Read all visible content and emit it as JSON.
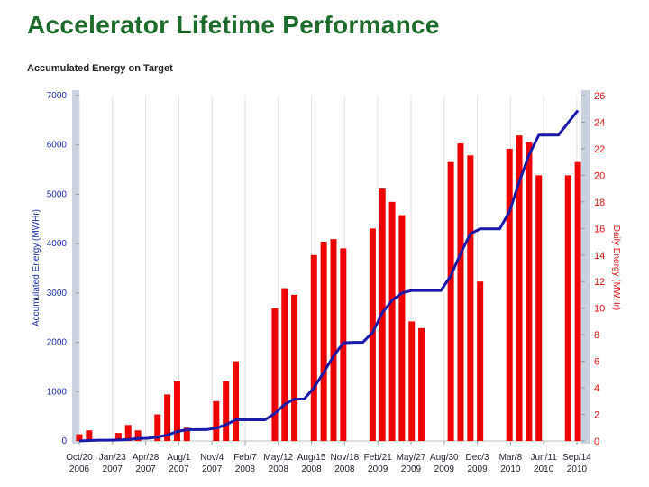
{
  "chart_data": {
    "type": "combo",
    "title": "Accelerator Lifetime Performance",
    "subtitle": "Accumulated Energy on Target",
    "ylabel": "Accumulated Energy (MWHr)",
    "y2label": "Daily Energy (MWHr)",
    "x": [
      "2006-10-20",
      "2006-11-17",
      "2006-12-15",
      "2007-01-12",
      "2007-02-09",
      "2007-03-09",
      "2007-04-06",
      "2007-05-04",
      "2007-06-01",
      "2007-06-29",
      "2007-07-27",
      "2007-08-24",
      "2007-09-21",
      "2007-10-19",
      "2007-11-16",
      "2007-12-14",
      "2008-01-11",
      "2008-02-08",
      "2008-03-07",
      "2008-04-04",
      "2008-05-02",
      "2008-05-30",
      "2008-06-27",
      "2008-07-25",
      "2008-08-22",
      "2008-09-19",
      "2008-10-17",
      "2008-11-14",
      "2008-12-12",
      "2009-01-09",
      "2009-02-06",
      "2009-03-06",
      "2009-04-03",
      "2009-05-01",
      "2009-05-29",
      "2009-06-26",
      "2009-07-24",
      "2009-08-21",
      "2009-09-18",
      "2009-10-16",
      "2009-11-13",
      "2009-12-11",
      "2010-01-08",
      "2010-02-05",
      "2010-03-05",
      "2010-04-02",
      "2010-04-30",
      "2010-05-28",
      "2010-06-25",
      "2010-07-23",
      "2010-08-20",
      "2010-09-17"
    ],
    "xlim": [
      "2006-10-20",
      "2010-09-27"
    ],
    "xticks": [
      {
        "value": "2006-10-20",
        "label": "Oct/20\n2006"
      },
      {
        "value": "2007-01-23",
        "label": "Jan/23\n2007"
      },
      {
        "value": "2007-04-28",
        "label": "Apr/28\n2007"
      },
      {
        "value": "2007-08-01",
        "label": "Aug/1\n2007"
      },
      {
        "value": "2007-11-04",
        "label": "Nov/4\n2007"
      },
      {
        "value": "2008-02-07",
        "label": "Feb/7\n2008"
      },
      {
        "value": "2008-05-12",
        "label": "May/12\n2008"
      },
      {
        "value": "2008-08-15",
        "label": "Aug/15\n2008"
      },
      {
        "value": "2008-11-18",
        "label": "Nov/18\n2008"
      },
      {
        "value": "2009-02-21",
        "label": "Feb/21\n2009"
      },
      {
        "value": "2009-05-27",
        "label": "May/27\n2009"
      },
      {
        "value": "2009-08-30",
        "label": "Aug/30\n2009"
      },
      {
        "value": "2009-12-03",
        "label": "Dec/3\n2009"
      },
      {
        "value": "2010-03-08",
        "label": "Mar/8\n2010"
      },
      {
        "value": "2010-06-11",
        "label": "Jun/11\n2010"
      },
      {
        "value": "2010-09-14",
        "label": "Sep/14\n2010"
      }
    ],
    "ylim": [
      0,
      7000
    ],
    "yticks": [
      0,
      1000,
      2000,
      3000,
      4000,
      5000,
      6000,
      7000
    ],
    "y2lim": [
      0,
      26
    ],
    "y2ticks": [
      0,
      2,
      4,
      6,
      8,
      10,
      12,
      14,
      16,
      18,
      20,
      22,
      24,
      26
    ],
    "grid": true,
    "series": [
      {
        "type": "bar",
        "axis": "y2",
        "color": "#ee0000",
        "values": [
          0.5,
          0.8,
          0,
          0,
          0.6,
          1.2,
          0.8,
          0,
          2,
          3.5,
          4.5,
          1,
          0,
          0,
          3,
          4.5,
          6,
          0,
          0,
          0,
          10,
          11.5,
          11,
          0,
          14,
          15,
          15.2,
          14.5,
          0,
          0,
          16,
          19,
          18,
          17,
          9,
          8.5,
          0,
          0,
          21,
          22.4,
          21.5,
          12,
          0,
          0,
          22,
          23,
          22.5,
          20,
          0,
          0,
          20,
          21
        ]
      },
      {
        "type": "line",
        "axis": "y",
        "color": "#1a1aa8",
        "values": [
          0,
          10,
          15,
          15,
          20,
          30,
          50,
          55,
          80,
          120,
          190,
          230,
          230,
          230,
          260,
          330,
          430,
          430,
          430,
          430,
          560,
          740,
          850,
          850,
          1080,
          1390,
          1720,
          1990,
          2000,
          2000,
          2200,
          2600,
          2850,
          3000,
          3050,
          3050,
          3050,
          3050,
          3350,
          3800,
          4200,
          4300,
          4300,
          4300,
          4650,
          5250,
          5800,
          6200,
          6200,
          6200,
          6450,
          6700
        ]
      }
    ]
  }
}
